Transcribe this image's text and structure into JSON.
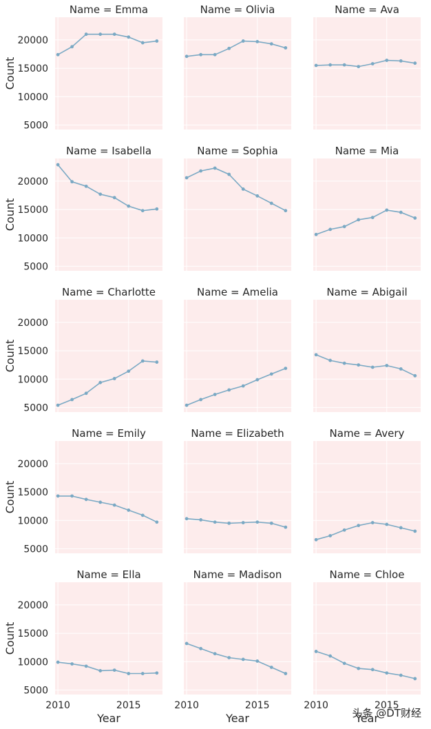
{
  "chart_data": {
    "type": "line",
    "layout": "facet-grid",
    "facet_variable": "Name",
    "xlabel": "Year",
    "ylabel": "Count",
    "xlim": [
      2009.8,
      2017.4
    ],
    "ylim": [
      4200,
      24000
    ],
    "xticks": [
      2010,
      2015
    ],
    "yticks": [
      5000,
      10000,
      15000,
      20000
    ],
    "x": [
      2010,
      2011,
      2012,
      2013,
      2014,
      2015,
      2016,
      2017
    ],
    "line_color": "#7aa9c4",
    "panel_background": "#fdecec",
    "grid": true,
    "series": [
      {
        "name": "Emma",
        "title": "Name = Emma",
        "values": [
          17400,
          18800,
          21000,
          21000,
          21000,
          20500,
          19500,
          19800
        ]
      },
      {
        "name": "Olivia",
        "title": "Name = Olivia",
        "values": [
          17100,
          17400,
          17400,
          18500,
          19800,
          19700,
          19300,
          18600
        ]
      },
      {
        "name": "Ava",
        "title": "Name = Ava",
        "values": [
          15500,
          15600,
          15600,
          15300,
          15800,
          16400,
          16300,
          15900
        ]
      },
      {
        "name": "Isabella",
        "title": "Name = Isabella",
        "values": [
          22900,
          19900,
          19100,
          17700,
          17100,
          15600,
          14800,
          15100
        ]
      },
      {
        "name": "Sophia",
        "title": "Name = Sophia",
        "values": [
          20600,
          21800,
          22300,
          21200,
          18600,
          17400,
          16100,
          14800
        ]
      },
      {
        "name": "Mia",
        "title": "Name = Mia",
        "values": [
          10600,
          11500,
          12000,
          13200,
          13600,
          14900,
          14500,
          13500
        ]
      },
      {
        "name": "Charlotte",
        "title": "Name = Charlotte",
        "values": [
          5400,
          6400,
          7500,
          9400,
          10100,
          11400,
          13200,
          13000
        ]
      },
      {
        "name": "Amelia",
        "title": "Name = Amelia",
        "values": [
          5400,
          6400,
          7300,
          8100,
          8800,
          9900,
          10900,
          11900
        ]
      },
      {
        "name": "Abigail",
        "title": "Name = Abigail",
        "values": [
          14300,
          13300,
          12800,
          12500,
          12100,
          12400,
          11800,
          10600
        ]
      },
      {
        "name": "Emily",
        "title": "Name = Emily",
        "values": [
          14300,
          14300,
          13700,
          13200,
          12700,
          11800,
          10900,
          9700
        ]
      },
      {
        "name": "Elizabeth",
        "title": "Name = Elizabeth",
        "values": [
          10300,
          10100,
          9700,
          9500,
          9600,
          9700,
          9500,
          8800
        ]
      },
      {
        "name": "Avery",
        "title": "Name = Avery",
        "values": [
          6600,
          7300,
          8300,
          9100,
          9600,
          9300,
          8700,
          8100
        ]
      },
      {
        "name": "Ella",
        "title": "Name = Ella",
        "values": [
          9900,
          9600,
          9200,
          8400,
          8500,
          7900,
          7900,
          8000
        ]
      },
      {
        "name": "Madison",
        "title": "Name = Madison",
        "values": [
          13200,
          12300,
          11400,
          10700,
          10400,
          10100,
          9000,
          7900
        ]
      },
      {
        "name": "Chloe",
        "title": "Name = Chloe",
        "values": [
          11800,
          11000,
          9700,
          8800,
          8600,
          8000,
          7600,
          7000
        ]
      }
    ]
  },
  "watermark": "头条 @DT财经"
}
